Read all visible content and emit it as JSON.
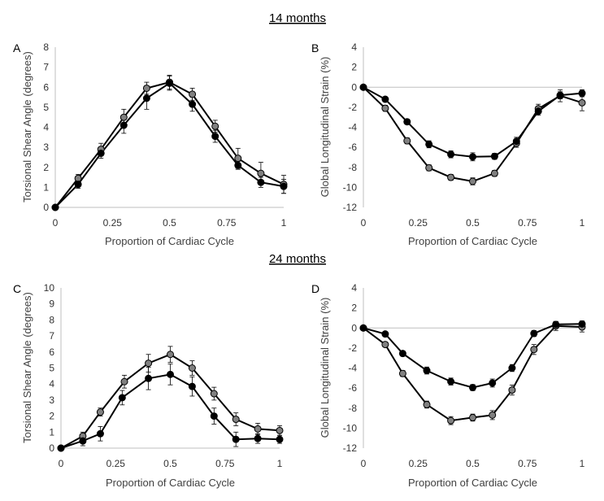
{
  "sections": [
    "14 months",
    "24 months"
  ],
  "colors": {
    "black_series": "#000000",
    "grey_series": "#808080",
    "axis": "#bfbfbf",
    "line": "#000000"
  },
  "chart_data": [
    {
      "panel": "A",
      "type": "line",
      "section": "14 months",
      "xlabel": "Proportion of Cardiac Cycle",
      "ylabel": "Torsional Shear Angle (degrees)",
      "xlim": [
        0,
        1
      ],
      "ylim": [
        0,
        8
      ],
      "xticks": [
        0,
        0.25,
        0.5,
        0.75,
        1
      ],
      "xtick_labels": [
        "0",
        "0.25",
        "0.5",
        "0.75",
        "1"
      ],
      "yticks": [
        0,
        1,
        2,
        3,
        4,
        5,
        6,
        7,
        8
      ],
      "ytick_labels": [
        "0",
        "1",
        "2",
        "3",
        "4",
        "5",
        "6",
        "7",
        "8"
      ],
      "series": [
        {
          "name": "grey",
          "color": "#808080",
          "x": [
            0,
            0.1,
            0.2,
            0.3,
            0.4,
            0.5,
            0.6,
            0.7,
            0.8,
            0.9,
            1.0
          ],
          "y": [
            0,
            1.45,
            2.9,
            4.5,
            5.95,
            6.25,
            5.65,
            4.05,
            2.45,
            1.7,
            1.15
          ],
          "err": [
            0,
            0.2,
            0.3,
            0.4,
            0.3,
            0.35,
            0.3,
            0.3,
            0.5,
            0.55,
            0.45
          ]
        },
        {
          "name": "black",
          "color": "#000000",
          "x": [
            0,
            0.1,
            0.2,
            0.3,
            0.4,
            0.5,
            0.6,
            0.7,
            0.8,
            0.9,
            1.0
          ],
          "y": [
            0,
            1.15,
            2.7,
            4.1,
            5.45,
            6.2,
            5.15,
            3.55,
            2.1,
            1.25,
            1.05
          ],
          "err": [
            0,
            0.2,
            0.25,
            0.4,
            0.55,
            0.35,
            0.35,
            0.3,
            0.2,
            0.25,
            0.35
          ]
        }
      ]
    },
    {
      "panel": "B",
      "type": "line",
      "section": "14 months",
      "xlabel": "Proportion of Cardiac Cycle",
      "ylabel": "Global Longitudinal Strain (%)",
      "xlim": [
        0,
        1
      ],
      "ylim": [
        -12,
        4
      ],
      "xticks": [
        0,
        0.25,
        0.5,
        0.75,
        1
      ],
      "xtick_labels": [
        "0",
        "0.25",
        "0.5",
        "0.75",
        "1"
      ],
      "yticks": [
        4,
        2,
        0,
        -2,
        -4,
        -6,
        -8,
        -10,
        -12
      ],
      "ytick_labels": [
        "4",
        "2",
        "0",
        "-2",
        "-4",
        "-6",
        "-8",
        "-10",
        "-12"
      ],
      "series": [
        {
          "name": "grey",
          "color": "#808080",
          "x": [
            0,
            0.1,
            0.2,
            0.3,
            0.4,
            0.5,
            0.6,
            0.7,
            0.8,
            0.9,
            1.0
          ],
          "y": [
            0,
            -2.1,
            -5.35,
            -8.05,
            -9.0,
            -9.4,
            -8.6,
            -5.6,
            -2.15,
            -0.85,
            -1.55
          ],
          "err": [
            0,
            0.3,
            0.3,
            0.3,
            0.3,
            0.35,
            0.3,
            0.4,
            0.45,
            0.6,
            0.8
          ]
        },
        {
          "name": "black",
          "color": "#000000",
          "x": [
            0,
            0.1,
            0.2,
            0.3,
            0.4,
            0.5,
            0.6,
            0.7,
            0.8,
            0.9,
            1.0
          ],
          "y": [
            0,
            -1.2,
            -3.45,
            -5.7,
            -6.7,
            -6.95,
            -6.9,
            -5.4,
            -2.4,
            -0.8,
            -0.6
          ],
          "err": [
            0,
            0.25,
            0.25,
            0.35,
            0.35,
            0.4,
            0.3,
            0.4,
            0.4,
            0.35,
            0.35
          ]
        }
      ]
    },
    {
      "panel": "C",
      "type": "line",
      "section": "24 months",
      "xlabel": "Proportion of Cardiac Cycle",
      "ylabel": "Torsional Shear Angle (degrees)",
      "xlim": [
        0,
        1
      ],
      "ylim": [
        0,
        10
      ],
      "xticks": [
        0,
        0.25,
        0.5,
        0.75,
        1
      ],
      "xtick_labels": [
        "0",
        "0.25",
        "0.5",
        "0.75",
        "1"
      ],
      "yticks": [
        0,
        1,
        2,
        3,
        4,
        5,
        6,
        7,
        8,
        9,
        10
      ],
      "ytick_labels": [
        "0",
        "1",
        "2",
        "3",
        "4",
        "5",
        "6",
        "7",
        "8",
        "9",
        "10"
      ],
      "series": [
        {
          "name": "grey",
          "color": "#808080",
          "x": [
            0,
            0.1,
            0.18,
            0.29,
            0.4,
            0.5,
            0.6,
            0.7,
            0.8,
            0.9,
            1.0
          ],
          "y": [
            0,
            0.75,
            2.25,
            4.15,
            5.3,
            5.85,
            5.0,
            3.4,
            1.8,
            1.2,
            1.1
          ],
          "err": [
            0,
            0.25,
            0.25,
            0.4,
            0.55,
            0.5,
            0.45,
            0.4,
            0.4,
            0.35,
            0.3
          ]
        },
        {
          "name": "black",
          "color": "#000000",
          "x": [
            0,
            0.1,
            0.18,
            0.28,
            0.4,
            0.5,
            0.6,
            0.7,
            0.8,
            0.9,
            1.0
          ],
          "y": [
            0,
            0.45,
            0.9,
            3.15,
            4.35,
            4.6,
            3.85,
            2.0,
            0.55,
            0.6,
            0.55
          ],
          "err": [
            0,
            0.3,
            0.45,
            0.45,
            0.7,
            0.65,
            0.6,
            0.5,
            0.45,
            0.3,
            0.25
          ]
        }
      ]
    },
    {
      "panel": "D",
      "type": "line",
      "section": "24 months",
      "xlabel": "Proportion of Cardiac Cycle",
      "ylabel": "Global Longitudinal Strain (%)",
      "xlim": [
        0,
        1
      ],
      "ylim": [
        -12,
        4
      ],
      "xticks": [
        0,
        0.25,
        0.5,
        0.75,
        1
      ],
      "xtick_labels": [
        "0",
        "0.25",
        "0.5",
        "0.75",
        "1"
      ],
      "yticks": [
        4,
        2,
        0,
        -2,
        -4,
        -6,
        -8,
        -10,
        -12
      ],
      "ytick_labels": [
        "4",
        "2",
        "0",
        "-2",
        "-4",
        "-6",
        "-8",
        "-10",
        "-12"
      ],
      "series": [
        {
          "name": "grey",
          "color": "#808080",
          "x": [
            0,
            0.1,
            0.18,
            0.29,
            0.4,
            0.5,
            0.59,
            0.68,
            0.78,
            0.88,
            1.0
          ],
          "y": [
            0,
            -1.65,
            -4.55,
            -7.65,
            -9.25,
            -8.95,
            -8.7,
            -6.2,
            -2.15,
            0.2,
            0.1
          ],
          "err": [
            0,
            0.25,
            0.3,
            0.35,
            0.4,
            0.35,
            0.45,
            0.5,
            0.5,
            0.45,
            0.5
          ]
        },
        {
          "name": "black",
          "color": "#000000",
          "x": [
            0,
            0.1,
            0.18,
            0.29,
            0.4,
            0.5,
            0.59,
            0.68,
            0.78,
            0.88,
            1.0
          ],
          "y": [
            0,
            -0.6,
            -2.55,
            -4.25,
            -5.35,
            -5.95,
            -5.5,
            -4.0,
            -0.55,
            0.35,
            0.4
          ],
          "err": [
            0,
            0.2,
            0.25,
            0.35,
            0.35,
            0.3,
            0.4,
            0.35,
            0.3,
            0.3,
            0.3
          ]
        }
      ]
    }
  ]
}
